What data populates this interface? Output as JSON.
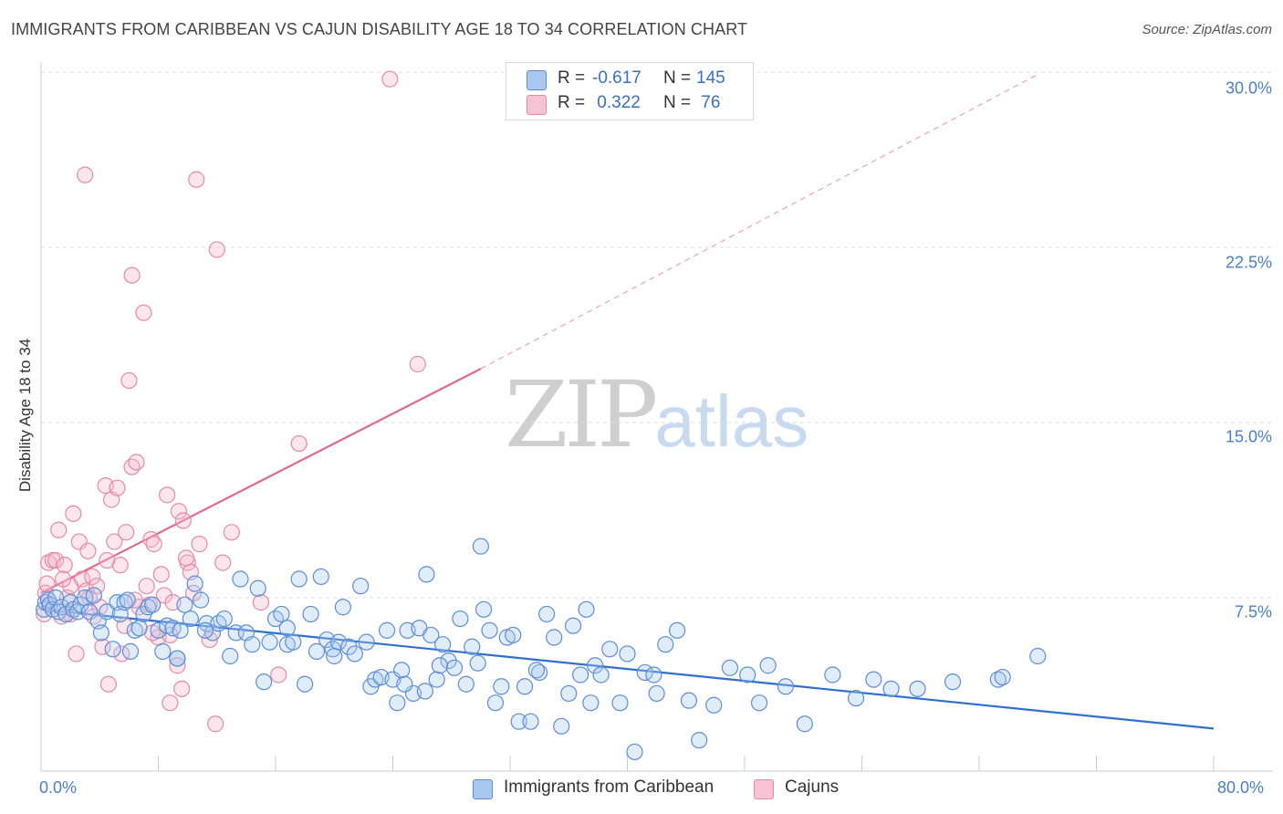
{
  "title": "IMMIGRANTS FROM CARIBBEAN VS CAJUN DISABILITY AGE 18 TO 34 CORRELATION CHART",
  "source": "Source: ZipAtlas.com",
  "watermark": {
    "zip": "ZIP",
    "atlas": "atlas"
  },
  "colors": {
    "blue_fill": "#a9c8ef",
    "blue_stroke": "#5b8ed6",
    "blue_line": "#2f6fd0",
    "pink_fill": "#f5b8cb",
    "pink_stroke": "#e58aa8",
    "pink_line": "#e06994",
    "grid": "#dddddd",
    "tick_text": "#4a7fc8"
  },
  "legend": {
    "rows": [
      {
        "r_label": "R = ",
        "r_value": "-0.617",
        "n_label": "N = ",
        "n_value": "145"
      },
      {
        "r_label": "R = ",
        "r_value": " 0.322",
        "n_label": "N = ",
        "n_value": " 76"
      }
    ]
  },
  "chart_data": {
    "type": "scatter",
    "title": "IMMIGRANTS FROM CARIBBEAN VS CAJUN DISABILITY AGE 18 TO 34 CORRELATION CHART",
    "xlabel": "",
    "ylabel": "Disability Age 18 to 34",
    "xlim": [
      0,
      80
    ],
    "ylim": [
      0,
      31.5
    ],
    "x_tick_labels": [
      "0.0%",
      "80.0%"
    ],
    "y_ticks": [
      7.5,
      15.0,
      22.5,
      30.0
    ],
    "y_tick_labels": [
      "7.5%",
      "15.0%",
      "22.5%",
      "30.0%"
    ],
    "grid": true,
    "legend_position": "top-center",
    "series": [
      {
        "name": "Immigrants from Caribbean",
        "color": "#5b8ed6",
        "R": -0.617,
        "N": 145,
        "trend": {
          "x0": 0,
          "y0": 7.0,
          "x1": 80,
          "y1": 1.9
        },
        "points": [
          [
            0.2,
            7.0
          ],
          [
            0.3,
            7.3
          ],
          [
            0.5,
            7.4
          ],
          [
            0.6,
            7.2
          ],
          [
            0.8,
            7.0
          ],
          [
            1.0,
            7.5
          ],
          [
            1.2,
            6.9
          ],
          [
            1.4,
            7.1
          ],
          [
            1.7,
            6.8
          ],
          [
            2.0,
            7.3
          ],
          [
            2.2,
            7.0
          ],
          [
            2.5,
            6.9
          ],
          [
            2.7,
            7.2
          ],
          [
            3.0,
            7.5
          ],
          [
            3.3,
            6.9
          ],
          [
            3.6,
            7.6
          ],
          [
            3.9,
            6.5
          ],
          [
            4.1,
            6.0
          ],
          [
            4.5,
            6.9
          ],
          [
            4.9,
            5.3
          ],
          [
            5.2,
            7.3
          ],
          [
            5.4,
            6.8
          ],
          [
            5.7,
            7.3
          ],
          [
            5.9,
            7.4
          ],
          [
            6.1,
            5.2
          ],
          [
            6.4,
            6.1
          ],
          [
            6.7,
            6.2
          ],
          [
            7.0,
            6.8
          ],
          [
            7.3,
            7.1
          ],
          [
            7.6,
            7.2
          ],
          [
            8.0,
            6.1
          ],
          [
            8.3,
            5.2
          ],
          [
            8.6,
            6.3
          ],
          [
            9.0,
            6.2
          ],
          [
            9.3,
            4.9
          ],
          [
            9.5,
            6.1
          ],
          [
            9.8,
            7.2
          ],
          [
            10.2,
            6.6
          ],
          [
            10.5,
            8.1
          ],
          [
            10.9,
            7.4
          ],
          [
            11.3,
            6.4
          ],
          [
            11.7,
            6.0
          ],
          [
            12.1,
            6.4
          ],
          [
            12.5,
            6.6
          ],
          [
            12.9,
            5.0
          ],
          [
            13.3,
            6.0
          ],
          [
            13.6,
            8.3
          ],
          [
            14.0,
            6.0
          ],
          [
            14.4,
            5.5
          ],
          [
            14.8,
            7.9
          ],
          [
            15.2,
            3.9
          ],
          [
            15.6,
            5.6
          ],
          [
            16.0,
            6.6
          ],
          [
            16.4,
            6.8
          ],
          [
            16.8,
            5.5
          ],
          [
            17.2,
            5.6
          ],
          [
            17.6,
            8.3
          ],
          [
            18.0,
            3.8
          ],
          [
            18.4,
            6.8
          ],
          [
            18.8,
            5.2
          ],
          [
            19.1,
            8.4
          ],
          [
            19.5,
            5.7
          ],
          [
            19.9,
            5.3
          ],
          [
            20.3,
            5.6
          ],
          [
            20.6,
            7.1
          ],
          [
            21.0,
            5.4
          ],
          [
            21.4,
            5.1
          ],
          [
            21.8,
            8.0
          ],
          [
            22.2,
            5.6
          ],
          [
            22.5,
            3.7
          ],
          [
            22.8,
            4.0
          ],
          [
            23.2,
            4.1
          ],
          [
            23.6,
            6.1
          ],
          [
            24.0,
            4.0
          ],
          [
            24.3,
            3.0
          ],
          [
            24.6,
            4.4
          ],
          [
            25.0,
            6.1
          ],
          [
            25.4,
            3.4
          ],
          [
            25.8,
            6.2
          ],
          [
            26.2,
            3.5
          ],
          [
            26.6,
            5.9
          ],
          [
            27.0,
            4.0
          ],
          [
            27.4,
            5.5
          ],
          [
            27.8,
            4.8
          ],
          [
            28.2,
            4.5
          ],
          [
            28.6,
            6.6
          ],
          [
            29.0,
            3.8
          ],
          [
            29.4,
            5.4
          ],
          [
            29.8,
            4.7
          ],
          [
            30.2,
            7.0
          ],
          [
            30.6,
            6.1
          ],
          [
            31.0,
            3.0
          ],
          [
            31.4,
            3.7
          ],
          [
            31.8,
            5.8
          ],
          [
            32.2,
            5.9
          ],
          [
            32.6,
            2.2
          ],
          [
            33.0,
            3.7
          ],
          [
            33.4,
            2.2
          ],
          [
            34.0,
            4.3
          ],
          [
            34.5,
            6.8
          ],
          [
            35.0,
            5.8
          ],
          [
            35.5,
            2.0
          ],
          [
            36.0,
            3.4
          ],
          [
            36.3,
            6.3
          ],
          [
            36.8,
            4.2
          ],
          [
            37.2,
            7.0
          ],
          [
            37.8,
            4.6
          ],
          [
            38.2,
            4.2
          ],
          [
            38.8,
            5.3
          ],
          [
            39.5,
            3.0
          ],
          [
            40.0,
            5.1
          ],
          [
            40.5,
            0.9
          ],
          [
            41.2,
            4.3
          ],
          [
            42.0,
            3.4
          ],
          [
            42.6,
            5.5
          ],
          [
            43.4,
            6.1
          ],
          [
            44.2,
            3.1
          ],
          [
            44.9,
            1.4
          ],
          [
            45.9,
            2.9
          ],
          [
            47.0,
            4.5
          ],
          [
            48.2,
            4.2
          ],
          [
            49.0,
            3.0
          ],
          [
            49.6,
            4.6
          ],
          [
            50.8,
            3.7
          ],
          [
            52.1,
            2.1
          ],
          [
            54.0,
            4.2
          ],
          [
            55.6,
            3.2
          ],
          [
            56.8,
            4.0
          ],
          [
            58.0,
            3.6
          ],
          [
            59.8,
            3.6
          ],
          [
            62.2,
            3.9
          ],
          [
            65.3,
            4.0
          ],
          [
            65.6,
            4.1
          ],
          [
            68.0,
            5.0
          ],
          [
            30.0,
            9.7
          ],
          [
            26.3,
            8.5
          ],
          [
            9.3,
            4.9
          ],
          [
            11.2,
            6.1
          ],
          [
            16.8,
            6.2
          ],
          [
            20.0,
            5.0
          ],
          [
            24.8,
            3.8
          ],
          [
            27.2,
            4.6
          ],
          [
            33.8,
            4.4
          ],
          [
            37.5,
            3.0
          ],
          [
            41.8,
            4.2
          ]
        ]
      },
      {
        "name": "Cajuns",
        "color": "#e58aa8",
        "R": 0.322,
        "N": 76,
        "trend": {
          "x0": 0,
          "y0": 7.7,
          "x1": 30,
          "y1": 17.3,
          "dashed_to_x": 68,
          "dashed_to_y": 29.9
        },
        "points": [
          [
            0.2,
            6.8
          ],
          [
            0.3,
            7.7
          ],
          [
            0.4,
            8.1
          ],
          [
            0.5,
            9.0
          ],
          [
            0.6,
            7.2
          ],
          [
            0.8,
            9.1
          ],
          [
            1.0,
            9.1
          ],
          [
            1.2,
            10.4
          ],
          [
            1.4,
            6.7
          ],
          [
            1.6,
            8.9
          ],
          [
            1.8,
            7.5
          ],
          [
            2.0,
            8.0
          ],
          [
            2.2,
            11.1
          ],
          [
            2.4,
            5.1
          ],
          [
            2.6,
            9.9
          ],
          [
            2.8,
            8.3
          ],
          [
            3.0,
            25.6
          ],
          [
            3.1,
            7.8
          ],
          [
            3.3,
            7.5
          ],
          [
            3.5,
            8.4
          ],
          [
            3.6,
            6.7
          ],
          [
            3.8,
            8.0
          ],
          [
            4.0,
            7.1
          ],
          [
            4.2,
            5.4
          ],
          [
            4.4,
            12.3
          ],
          [
            4.6,
            3.8
          ],
          [
            4.8,
            11.7
          ],
          [
            5.0,
            9.9
          ],
          [
            5.2,
            12.2
          ],
          [
            5.4,
            8.9
          ],
          [
            5.5,
            5.1
          ],
          [
            5.8,
            10.3
          ],
          [
            6.0,
            16.8
          ],
          [
            6.2,
            13.1
          ],
          [
            6.2,
            21.3
          ],
          [
            6.5,
            13.3
          ],
          [
            6.7,
            7.1
          ],
          [
            7.0,
            19.7
          ],
          [
            7.2,
            8.0
          ],
          [
            7.4,
            7.2
          ],
          [
            7.5,
            10.0
          ],
          [
            7.7,
            9.8
          ],
          [
            8.0,
            5.8
          ],
          [
            8.2,
            8.5
          ],
          [
            8.4,
            7.6
          ],
          [
            8.6,
            11.9
          ],
          [
            8.8,
            3.0
          ],
          [
            9.0,
            7.3
          ],
          [
            9.3,
            4.6
          ],
          [
            9.4,
            11.2
          ],
          [
            9.6,
            3.6
          ],
          [
            9.7,
            10.8
          ],
          [
            10.0,
            9.0
          ],
          [
            10.2,
            8.6
          ],
          [
            10.4,
            7.7
          ],
          [
            10.6,
            25.4
          ],
          [
            10.8,
            9.8
          ],
          [
            11.5,
            5.7
          ],
          [
            11.9,
            2.1
          ],
          [
            12.0,
            22.4
          ],
          [
            12.4,
            9.0
          ],
          [
            13.0,
            10.3
          ],
          [
            15.0,
            7.3
          ],
          [
            16.2,
            4.2
          ],
          [
            17.6,
            14.1
          ],
          [
            23.8,
            29.7
          ],
          [
            25.7,
            17.5
          ],
          [
            3.2,
            9.5
          ],
          [
            2.0,
            6.8
          ],
          [
            5.7,
            6.3
          ],
          [
            7.6,
            6.0
          ],
          [
            8.8,
            5.9
          ],
          [
            1.5,
            8.3
          ],
          [
            4.5,
            9.1
          ],
          [
            6.4,
            7.4
          ],
          [
            9.9,
            9.2
          ]
        ]
      }
    ]
  },
  "bottom_legend": [
    {
      "label": "Immigrants from Caribbean"
    },
    {
      "label": "Cajuns"
    }
  ]
}
